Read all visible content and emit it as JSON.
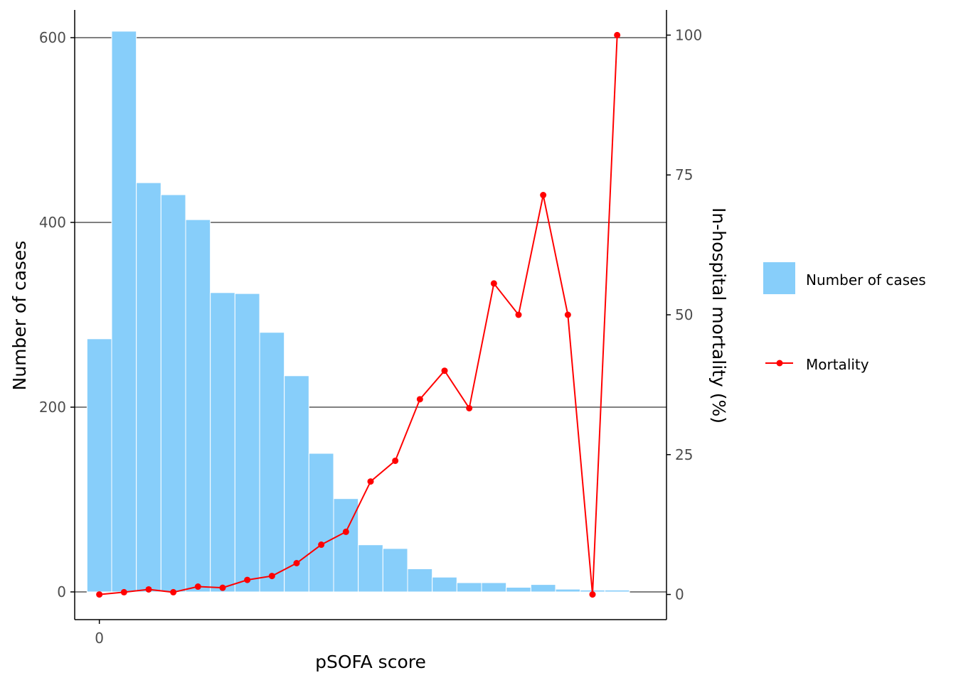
{
  "colors": {
    "bar_fill": "#87CEFA",
    "bar_stroke": "#ffffff",
    "line": "#ff0000",
    "grid": "#000000",
    "axis": "#000000",
    "tick_text": "#4d4d4d"
  },
  "chart_data": {
    "type": "bar",
    "xlabel": "pSOFA score",
    "ylabel": "Number of cases",
    "y2label": "In-hospital mortality (%)",
    "x_tick_labels": [
      "0"
    ],
    "x": [
      0,
      1,
      2,
      3,
      4,
      5,
      6,
      7,
      8,
      9,
      10,
      11,
      12,
      13,
      14,
      15,
      16,
      17,
      18,
      19,
      20,
      21
    ],
    "ylim": [
      -30,
      630
    ],
    "y_ticks": [
      0,
      200,
      400,
      600
    ],
    "y2lim": [
      -4.5,
      104.5
    ],
    "y2_ticks": [
      0,
      25,
      50,
      75,
      100
    ],
    "grid": "horizontal major lines at left-axis ticks",
    "legend_position": "right",
    "series": [
      {
        "name": "Number of cases",
        "type": "bar",
        "axis": "left",
        "values": [
          274,
          607,
          443,
          430,
          403,
          324,
          323,
          281,
          234,
          150,
          101,
          51,
          47,
          25,
          16,
          10,
          10,
          5,
          8,
          3,
          2,
          2
        ]
      },
      {
        "name": "Mortality",
        "type": "line",
        "axis": "right",
        "values": [
          0,
          0.4,
          0.9,
          0.4,
          1.4,
          1.2,
          2.6,
          3.3,
          5.6,
          8.9,
          11.2,
          20.2,
          23.9,
          34.9,
          40.0,
          33.3,
          55.6,
          50.0,
          71.4,
          50.0,
          0,
          100
        ]
      }
    ]
  }
}
